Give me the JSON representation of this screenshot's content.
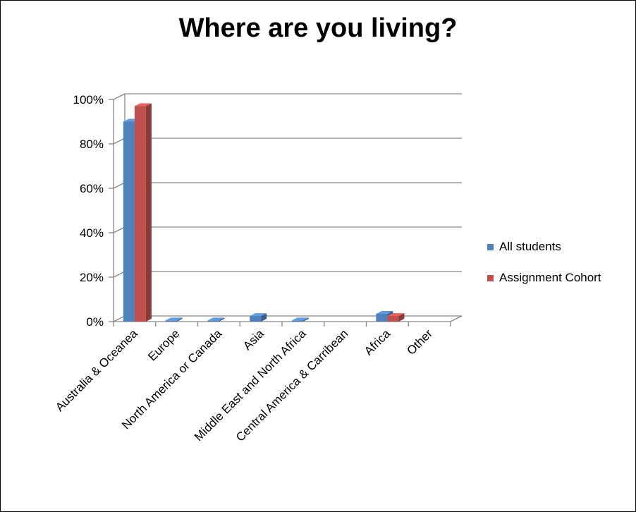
{
  "chart_data": {
    "type": "bar",
    "title": "Where are you living?",
    "categories": [
      "Australia & Oceanea",
      "Europe",
      "North America or Canada",
      "Asia",
      "Middle East and North Africa",
      "Central America & Carribean",
      "Africa",
      "Other"
    ],
    "series": [
      {
        "name": "All students",
        "color": "#4F81BD",
        "values": [
          90,
          0.5,
          0.5,
          2.5,
          0.5,
          0,
          3.5,
          0
        ]
      },
      {
        "name": "Assignment Cohort",
        "color": "#C0504D",
        "values": [
          97,
          0,
          0,
          0,
          0,
          0,
          2.5,
          0
        ]
      }
    ],
    "yticks": [
      "0%",
      "20%",
      "40%",
      "60%",
      "80%",
      "100%"
    ],
    "ylim": [
      0,
      100
    ],
    "grid": true,
    "legend_position": "right"
  }
}
